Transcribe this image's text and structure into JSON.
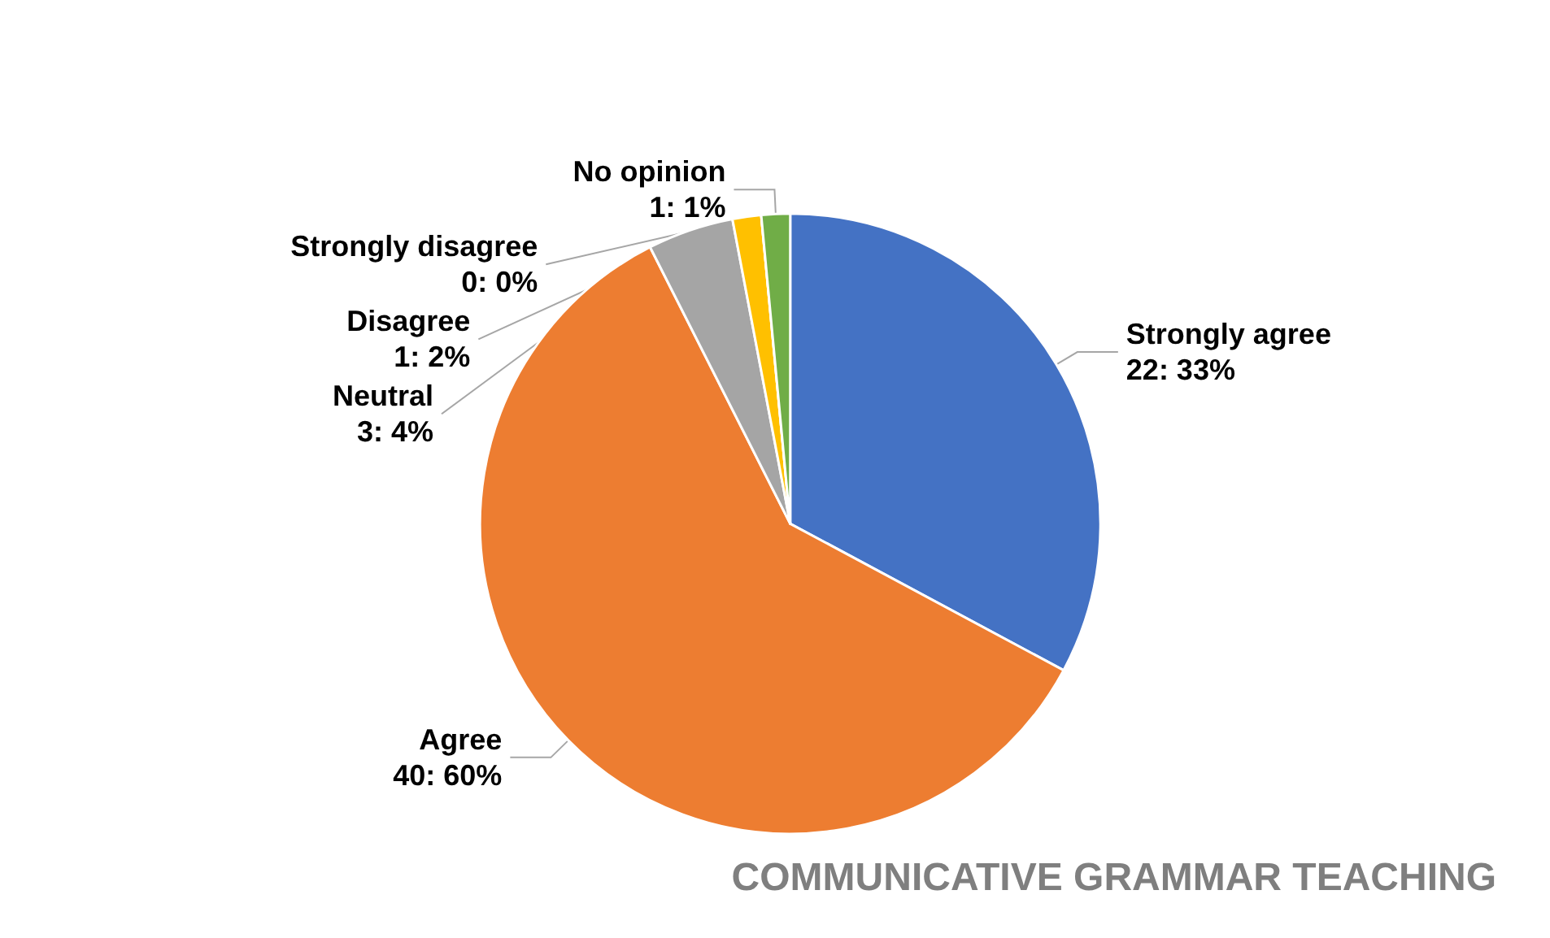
{
  "chart_data": {
    "type": "pie",
    "title": "COMMUNICATIVE GRAMMAR TEACHING",
    "categories": [
      "Strongly agree",
      "Agree",
      "Neutral",
      "Disagree",
      "Strongly disagree",
      "No opinion"
    ],
    "values": [
      22,
      40,
      3,
      1,
      0,
      1
    ],
    "value_labels": [
      "22: 33%",
      "40: 60%",
      "3: 4%",
      "1: 2%",
      "0: 0%",
      "1: 1%"
    ],
    "colors": [
      "#4472c4",
      "#ed7d31",
      "#a5a5a5",
      "#ffc000",
      "#5b9bd5",
      "#70ad47"
    ],
    "legend": false
  }
}
